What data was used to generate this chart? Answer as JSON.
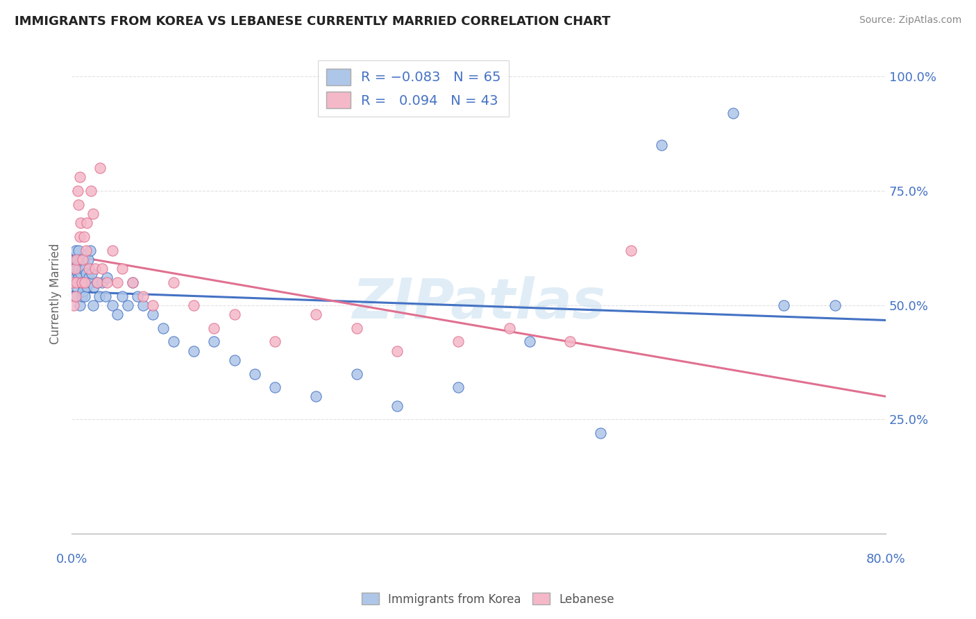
{
  "title": "IMMIGRANTS FROM KOREA VS LEBANESE CURRENTLY MARRIED CORRELATION CHART",
  "source": "Source: ZipAtlas.com",
  "ylabel": "Currently Married",
  "legend_entries": [
    {
      "label": "Immigrants from Korea",
      "R": -0.083,
      "N": 65,
      "color": "#aec6e8",
      "line_color": "#4472c4"
    },
    {
      "label": "Lebanese",
      "R": 0.094,
      "N": 43,
      "color": "#f4b8c8",
      "line_color": "#e07090"
    }
  ],
  "korea_x": [
    0.001,
    0.002,
    0.003,
    0.003,
    0.004,
    0.004,
    0.005,
    0.005,
    0.006,
    0.006,
    0.007,
    0.007,
    0.007,
    0.008,
    0.008,
    0.009,
    0.009,
    0.01,
    0.01,
    0.011,
    0.011,
    0.012,
    0.012,
    0.013,
    0.013,
    0.014,
    0.014,
    0.015,
    0.016,
    0.017,
    0.018,
    0.019,
    0.02,
    0.021,
    0.022,
    0.025,
    0.027,
    0.03,
    0.033,
    0.035,
    0.04,
    0.045,
    0.05,
    0.055,
    0.06,
    0.065,
    0.07,
    0.08,
    0.09,
    0.1,
    0.12,
    0.14,
    0.16,
    0.18,
    0.2,
    0.24,
    0.28,
    0.32,
    0.38,
    0.45,
    0.52,
    0.58,
    0.65,
    0.7,
    0.75
  ],
  "korea_y": [
    0.55,
    0.52,
    0.6,
    0.58,
    0.56,
    0.62,
    0.58,
    0.54,
    0.57,
    0.6,
    0.56,
    0.62,
    0.58,
    0.55,
    0.5,
    0.57,
    0.6,
    0.55,
    0.52,
    0.58,
    0.53,
    0.6,
    0.55,
    0.58,
    0.52,
    0.55,
    0.57,
    0.54,
    0.6,
    0.56,
    0.62,
    0.55,
    0.57,
    0.5,
    0.54,
    0.55,
    0.52,
    0.55,
    0.52,
    0.56,
    0.5,
    0.48,
    0.52,
    0.5,
    0.55,
    0.52,
    0.5,
    0.48,
    0.45,
    0.42,
    0.4,
    0.42,
    0.38,
    0.35,
    0.32,
    0.3,
    0.35,
    0.28,
    0.32,
    0.42,
    0.22,
    0.85,
    0.92,
    0.5,
    0.5
  ],
  "lebanese_x": [
    0.001,
    0.002,
    0.003,
    0.004,
    0.005,
    0.005,
    0.006,
    0.007,
    0.008,
    0.008,
    0.009,
    0.01,
    0.011,
    0.012,
    0.013,
    0.014,
    0.015,
    0.017,
    0.019,
    0.021,
    0.023,
    0.025,
    0.028,
    0.03,
    0.035,
    0.04,
    0.045,
    0.05,
    0.06,
    0.07,
    0.08,
    0.1,
    0.12,
    0.14,
    0.16,
    0.2,
    0.24,
    0.28,
    0.32,
    0.38,
    0.43,
    0.49,
    0.55
  ],
  "lebanese_y": [
    0.55,
    0.5,
    0.58,
    0.52,
    0.55,
    0.6,
    0.75,
    0.72,
    0.65,
    0.78,
    0.68,
    0.55,
    0.6,
    0.65,
    0.55,
    0.62,
    0.68,
    0.58,
    0.75,
    0.7,
    0.58,
    0.55,
    0.8,
    0.58,
    0.55,
    0.62,
    0.55,
    0.58,
    0.55,
    0.52,
    0.5,
    0.55,
    0.5,
    0.45,
    0.48,
    0.42,
    0.48,
    0.45,
    0.4,
    0.42,
    0.45,
    0.42,
    0.62
  ],
  "watermark": "ZIPatlas",
  "background_color": "#ffffff",
  "grid_color": "#dddddd",
  "title_color": "#222222",
  "axis_color": "#4472c4",
  "xlim": [
    0.0,
    0.8
  ],
  "ylim": [
    0.0,
    1.05
  ],
  "yticks": [
    0.25,
    0.5,
    0.75,
    1.0
  ],
  "ytick_labels": [
    "25.0%",
    "50.0%",
    "75.0%",
    "100.0%"
  ]
}
